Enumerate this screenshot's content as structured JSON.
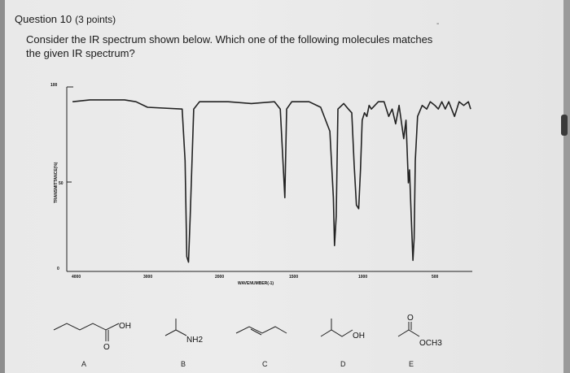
{
  "question": {
    "title": "Question 10",
    "points": "(3 points)",
    "text": "Consider the IR spectrum shown below. Which one of the following molecules matches the given IR spectrum?"
  },
  "spectrum": {
    "y_ticks": [
      "100",
      "50",
      "0"
    ],
    "y_axis_label": "TRANSMITTANCE(%)",
    "x_ticks": [
      "4000",
      "3000",
      "2000",
      "1500",
      "1000",
      "500"
    ],
    "x_axis_label": "WAVENUMBER(-1)",
    "x_range": [
      4000,
      500
    ],
    "y_range": [
      0,
      100
    ],
    "trace": [
      [
        3950,
        92
      ],
      [
        3800,
        93
      ],
      [
        3500,
        93
      ],
      [
        3400,
        92
      ],
      [
        3300,
        89
      ],
      [
        3000,
        88
      ],
      [
        2975,
        60
      ],
      [
        2960,
        8
      ],
      [
        2945,
        5
      ],
      [
        2930,
        30
      ],
      [
        2900,
        88
      ],
      [
        2850,
        92
      ],
      [
        2600,
        92
      ],
      [
        2400,
        91
      ],
      [
        2200,
        92
      ],
      [
        2150,
        88
      ],
      [
        2110,
        40
      ],
      [
        2095,
        88
      ],
      [
        2050,
        92
      ],
      [
        1900,
        92
      ],
      [
        1800,
        89
      ],
      [
        1720,
        76
      ],
      [
        1690,
        40
      ],
      [
        1680,
        14
      ],
      [
        1665,
        30
      ],
      [
        1650,
        88
      ],
      [
        1600,
        91
      ],
      [
        1560,
        88
      ],
      [
        1530,
        86
      ],
      [
        1510,
        58
      ],
      [
        1490,
        36
      ],
      [
        1470,
        34
      ],
      [
        1455,
        55
      ],
      [
        1440,
        82
      ],
      [
        1420,
        86
      ],
      [
        1400,
        84
      ],
      [
        1380,
        90
      ],
      [
        1360,
        88
      ],
      [
        1300,
        92
      ],
      [
        1250,
        92
      ],
      [
        1210,
        84
      ],
      [
        1180,
        88
      ],
      [
        1150,
        80
      ],
      [
        1120,
        90
      ],
      [
        1080,
        72
      ],
      [
        1060,
        82
      ],
      [
        1040,
        48
      ],
      [
        1030,
        55
      ],
      [
        1015,
        30
      ],
      [
        1000,
        6
      ],
      [
        990,
        18
      ],
      [
        980,
        60
      ],
      [
        960,
        84
      ],
      [
        920,
        90
      ],
      [
        880,
        88
      ],
      [
        850,
        92
      ],
      [
        810,
        90
      ],
      [
        780,
        88
      ],
      [
        750,
        92
      ],
      [
        720,
        88
      ],
      [
        690,
        92
      ],
      [
        640,
        84
      ],
      [
        600,
        92
      ],
      [
        560,
        90
      ],
      [
        520,
        92
      ],
      [
        500,
        88
      ]
    ]
  },
  "choices": [
    {
      "letter": "A",
      "group": "OH",
      "group2": "O"
    },
    {
      "letter": "B",
      "group": "NH2"
    },
    {
      "letter": "C"
    },
    {
      "letter": "D",
      "group": "OH"
    },
    {
      "letter": "E",
      "group": "OCH3",
      "group2": "O"
    }
  ]
}
